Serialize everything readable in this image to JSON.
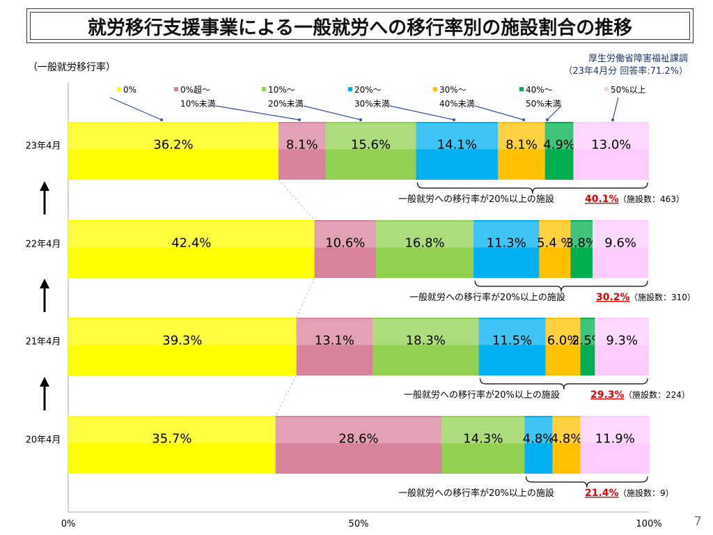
{
  "title": "就労移行支援事業による一般就労への移行率別の施設割合の推移",
  "source_line1": "厚生労働省障害福祉課調",
  "source_line2": "（23年4月分 回答率:71.2%）",
  "page_number": "7",
  "chart_data": {
    "type": "bar",
    "orientation": "horizontal-stacked-100",
    "ylabel": "（一般就労移行率）",
    "categories": [
      "23年4月",
      "22年4月",
      "21年4月",
      "20年4月"
    ],
    "series": [
      {
        "name": "0%",
        "color": "#ffff00",
        "values": [
          36.2,
          42.4,
          39.3,
          35.7
        ]
      },
      {
        "name": "0%超～10%未満",
        "color": "#d9829b",
        "values": [
          8.1,
          10.6,
          13.1,
          28.6
        ]
      },
      {
        "name": "10%～20%未満",
        "color": "#92d050",
        "values": [
          15.6,
          16.8,
          18.3,
          14.3
        ]
      },
      {
        "name": "20%～30%未満",
        "color": "#00b0f0",
        "values": [
          14.1,
          11.3,
          11.5,
          4.8
        ]
      },
      {
        "name": "30%～40%未満",
        "color": "#ffc000",
        "values": [
          8.1,
          5.4,
          6.0,
          4.8
        ]
      },
      {
        "name": "40%～50%未満",
        "color": "#00b050",
        "values": [
          4.9,
          3.8,
          2.5,
          0
        ]
      },
      {
        "name": "50%以上",
        "color": "#ffccff",
        "values": [
          13.0,
          9.6,
          9.3,
          11.9
        ]
      }
    ],
    "labels": [
      [
        "36.2%",
        "8.1%",
        "15.6%",
        "14.1%",
        "8.1%",
        "4.9%",
        "13.0%"
      ],
      [
        "42.4%",
        "10.6%",
        "16.8%",
        "11.3%",
        "5.4 %",
        "3.8%",
        "9.6%"
      ],
      [
        "39.3%",
        "13.1%",
        "18.3%",
        "11.5%",
        "6.0%",
        "2.5%",
        "9.3%"
      ],
      [
        "35.7%",
        "28.6%",
        "14.3%",
        "4.8%",
        "4.8%",
        "",
        "11.9%"
      ]
    ],
    "legend": [
      [
        "0%",
        ""
      ],
      [
        "0%超～",
        "10%未満"
      ],
      [
        "10%～",
        "20%未満"
      ],
      [
        "20%～",
        "30%未満"
      ],
      [
        "30%～",
        "40%未満"
      ],
      [
        "40%～",
        "50%未満"
      ],
      [
        "50%以上",
        ""
      ]
    ],
    "annotations": [
      {
        "text": "一般就労への移行率が20%以上の施設",
        "pct": "40.1%",
        "count": "（施設数：463）"
      },
      {
        "text": "一般就労への移行率が20%以上の施設",
        "pct": "30.2%",
        "count": "（施設数：310）"
      },
      {
        "text": "一般就労への移行率が20%以上の施設",
        "pct": "29.3%",
        "count": "（施設数：224）"
      },
      {
        "text": "一般就労への移行率が20%以上の施設",
        "pct": "21.4%",
        "count": "（施設数：9）"
      }
    ],
    "xticks": [
      "0%",
      "50%",
      "100%"
    ],
    "xlim": [
      0,
      100
    ]
  }
}
